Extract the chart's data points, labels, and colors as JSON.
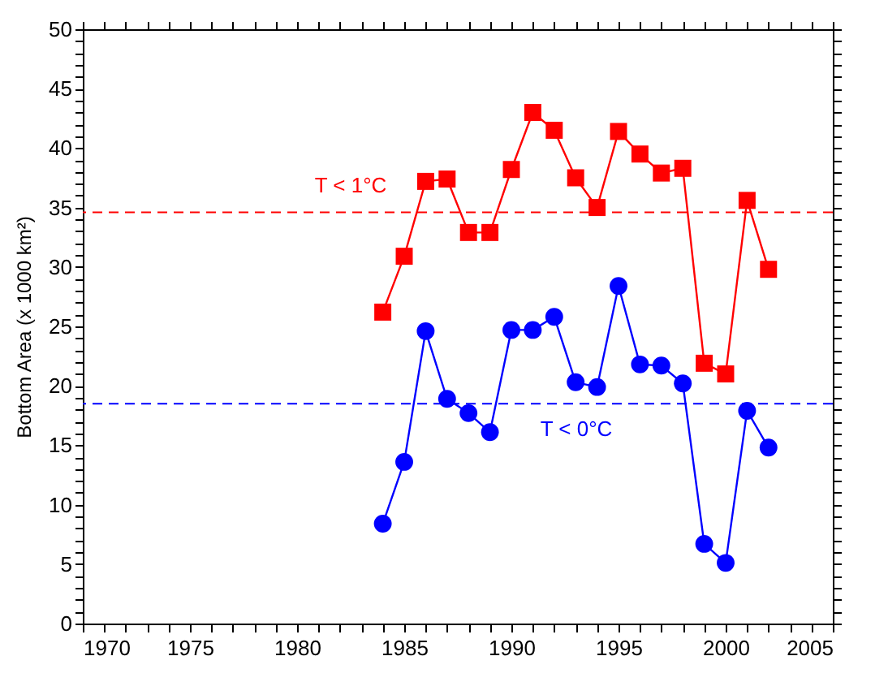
{
  "chart_data": {
    "type": "line",
    "ylabel": "Bottom Area (x 1000 km²)",
    "x": [
      1984,
      1985,
      1986,
      1987,
      1988,
      1989,
      1990,
      1991,
      1992,
      1993,
      1994,
      1995,
      1996,
      1997,
      1998,
      1999,
      2000,
      2001,
      2002
    ],
    "series": [
      {
        "color": "#ff0000",
        "marker": "square",
        "values": [
          26.2,
          30.9,
          37.2,
          37.4,
          32.9,
          32.9,
          38.2,
          43.0,
          41.5,
          37.5,
          35.0,
          41.4,
          39.5,
          37.9,
          38.3,
          21.9,
          21.0,
          35.6,
          29.8
        ]
      },
      {
        "color": "#0000ff",
        "marker": "circle",
        "values": [
          8.4,
          13.6,
          24.6,
          18.9,
          17.7,
          16.1,
          24.7,
          24.7,
          25.8,
          20.3,
          19.9,
          28.4,
          21.8,
          21.7,
          20.2,
          6.7,
          5.1,
          17.9,
          14.8
        ]
      }
    ],
    "ref_lines": [
      {
        "axis": "y",
        "value": 34.6,
        "label": "T < 1°C",
        "color": "#ff0000",
        "line_style": "dashed"
      },
      {
        "axis": "y",
        "value": 18.5,
        "label": "T < 0°C",
        "color": "#0000ff",
        "line_style": "dashed"
      }
    ],
    "xlim": [
      1970,
      2005
    ],
    "xticks": [
      1970,
      {
        "value": 1971,
        "label": null
      },
      {
        "value": 1972,
        "label": null
      },
      {
        "value": 1973,
        "label": null
      },
      {
        "value": 1974,
        "label": null
      },
      1975,
      {
        "value": 1976,
        "label": null
      },
      {
        "value": 1977,
        "label": null
      },
      {
        "value": 1978,
        "label": null
      },
      {
        "value": 1979,
        "label": null
      },
      1980,
      {
        "value": 1981,
        "label": null
      },
      {
        "value": 1982,
        "label": null
      },
      {
        "value": 1983,
        "label": null
      },
      {
        "value": 1984,
        "label": null
      },
      1985,
      {
        "value": 1986,
        "label": null
      },
      {
        "value": 1987,
        "label": null
      },
      {
        "value": 1988,
        "label": null
      },
      {
        "value": 1989,
        "label": null
      },
      1990,
      {
        "value": 1991,
        "label": null
      },
      {
        "value": 1992,
        "label": null
      },
      {
        "value": 1993,
        "label": null
      },
      {
        "value": 1994,
        "label": null
      },
      1995,
      {
        "value": 1996,
        "label": null
      },
      {
        "value": 1997,
        "label": null
      },
      {
        "value": 1998,
        "label": null
      },
      {
        "value": 1999,
        "label": null
      },
      2000,
      {
        "value": 2001,
        "label": null
      },
      {
        "value": 2002,
        "label": null
      },
      {
        "value": 2003,
        "label": null
      },
      {
        "value": 2004,
        "label": null
      },
      2005
    ],
    "ylim": [
      0,
      50
    ],
    "yticks": [
      0,
      {
        "value": 1,
        "label": null
      },
      {
        "value": 2,
        "label": null
      },
      {
        "value": 3,
        "label": null
      },
      {
        "value": 4,
        "label": null
      },
      5,
      {
        "value": 6,
        "label": null
      },
      {
        "value": 7,
        "label": null
      },
      {
        "value": 8,
        "label": null
      },
      {
        "value": 9,
        "label": null
      },
      10,
      {
        "value": 11,
        "label": null
      },
      {
        "value": 12,
        "label": null
      },
      {
        "value": 13,
        "label": null
      },
      {
        "value": 14,
        "label": null
      },
      15,
      {
        "value": 16,
        "label": null
      },
      {
        "value": 17,
        "label": null
      },
      {
        "value": 18,
        "label": null
      },
      {
        "value": 19,
        "label": null
      },
      20,
      {
        "value": 21,
        "label": null
      },
      {
        "value": 22,
        "label": null
      },
      {
        "value": 23,
        "label": null
      },
      {
        "value": 24,
        "label": null
      },
      25,
      {
        "value": 26,
        "label": null
      },
      {
        "value": 27,
        "label": null
      },
      {
        "value": 28,
        "label": null
      },
      {
        "value": 29,
        "label": null
      },
      30,
      {
        "value": 31,
        "label": null
      },
      {
        "value": 32,
        "label": null
      },
      {
        "value": 33,
        "label": null
      },
      {
        "value": 34,
        "label": null
      },
      35,
      {
        "value": 36,
        "label": null
      },
      {
        "value": 37,
        "label": null
      },
      {
        "value": 38,
        "label": null
      },
      {
        "value": 39,
        "label": null
      },
      40,
      {
        "value": 41,
        "label": null
      },
      {
        "value": 42,
        "label": null
      },
      {
        "value": 43,
        "label": null
      },
      {
        "value": 44,
        "label": null
      },
      45,
      {
        "value": 46,
        "label": null
      },
      {
        "value": 47,
        "label": null
      },
      {
        "value": 48,
        "label": null
      },
      {
        "value": 49,
        "label": null
      },
      50
    ],
    "grid": false
  }
}
